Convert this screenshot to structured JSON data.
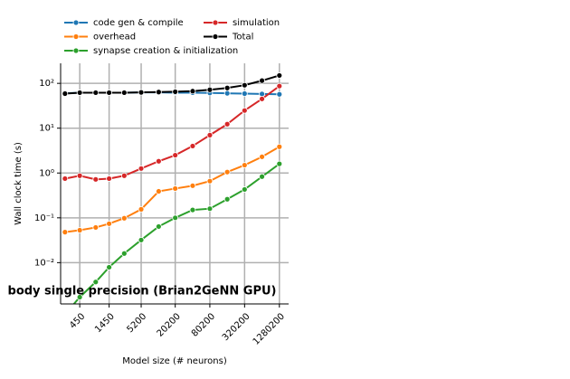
{
  "chart_data": {
    "type": "line",
    "title": "body single precision (Brian2GeNN GPU)",
    "x_label": "Model size (# neurons)",
    "y_label": "Wall clock time (s)",
    "x": [
      250,
      450,
      850,
      1450,
      2650,
      5200,
      10450,
      20200,
      40450,
      80200,
      160450,
      320200,
      640450,
      1280200
    ],
    "series": [
      {
        "name": "code gen & compile",
        "color": "#1f77b4",
        "values": [
          60,
          62,
          62,
          62,
          62,
          63,
          63,
          62,
          62,
          61,
          60,
          59,
          58,
          57
        ]
      },
      {
        "name": "overhead",
        "color": "#ff7f0e",
        "values": [
          0.048,
          0.053,
          0.061,
          0.074,
          0.098,
          0.155,
          0.39,
          0.45,
          0.52,
          0.66,
          1.05,
          1.5,
          2.3,
          3.85
        ]
      },
      {
        "name": "synapse creation & initialization",
        "color": "#2ca02c",
        "values": [
          0.0007,
          0.0017,
          0.0037,
          0.0079,
          0.016,
          0.032,
          0.064,
          0.1,
          0.15,
          0.16,
          0.26,
          0.43,
          0.83,
          1.6
        ]
      },
      {
        "name": "simulation",
        "color": "#d62728",
        "values": [
          0.75,
          0.87,
          0.72,
          0.75,
          0.87,
          1.26,
          1.83,
          2.5,
          4.0,
          7.0,
          12.3,
          24.8,
          45,
          87
        ]
      },
      {
        "name": "Total",
        "color": "#000000",
        "values": [
          59,
          62,
          62,
          62,
          62,
          63,
          64,
          65,
          67,
          72,
          79,
          91,
          115,
          150
        ]
      }
    ],
    "x_scale": "log",
    "y_scale": "log",
    "xlim": [
      210,
      1850000
    ],
    "xticks": [
      450,
      1450,
      5200,
      20200,
      80200,
      320200,
      1280200
    ],
    "ylim": [
      0.0012,
      280
    ],
    "yticks": [
      {
        "value": 0.01,
        "label": "10⁻²"
      },
      {
        "value": 0.1,
        "label": "10⁻¹"
      },
      {
        "value": 1,
        "label": "10⁰"
      },
      {
        "value": 10,
        "label": "10¹"
      },
      {
        "value": 100,
        "label": "10²"
      }
    ],
    "grid": true,
    "legend_position": "top-left"
  }
}
